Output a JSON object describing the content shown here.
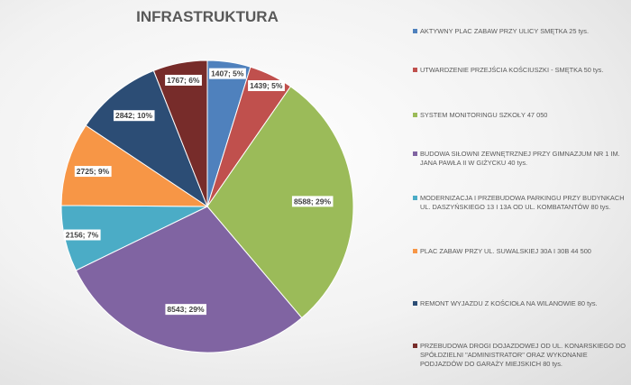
{
  "chart_data": {
    "type": "pie",
    "title": "INFRASTRUKTURA",
    "legend_position": "right",
    "series": [
      {
        "name": "AKTYWNY PLAC ZABAW PRZY ULICY SMĘTKA 25 tys.",
        "value": 1407,
        "percent": "5%",
        "label": "1407; 5%",
        "color": "#4f81bd"
      },
      {
        "name": "UTWARDZENIE PRZEJŚCIA KOŚCIUSZKI - SMĘTKA 50 tys.",
        "value": 1439,
        "percent": "5%",
        "label": "1439; 5%",
        "color": "#c0504d"
      },
      {
        "name": "SYSTEM MONITORINGU SZKOŁY 47 050",
        "value": 8588,
        "percent": "29%",
        "label": "8588; 29%",
        "color": "#9bbb59"
      },
      {
        "name": "BUDOWA SIŁOWNI ZEWNĘTRZNEJ PRZY GIMNAZJUM NR 1 IM. JANA PAWŁA II W GIŻYCKU 40 tys.",
        "value": 8543,
        "percent": "29%",
        "label": "8543; 29%",
        "color": "#8064a2"
      },
      {
        "name": "MODERNIZACJA I PRZEBUDOWA PARKINGU PRZY BUDYNKACH UL. DASZYŃSKIEGO 13 I 13A OD UL. KOMBATANTÓW 80 tys.",
        "value": 2156,
        "percent": "7%",
        "label": "2156; 7%",
        "color": "#4bacc6"
      },
      {
        "name": "PLAC ZABAW PRZY UL. SUWALSKIEJ 30A I 30B 44 500",
        "value": 2725,
        "percent": "9%",
        "label": "2725; 9%",
        "color": "#f79646"
      },
      {
        "name": "REMONT WYJAZDU Z KOŚCIOŁA NA WILANOWIE 80 tys.",
        "value": 2842,
        "percent": "10%",
        "label": "2842; 10%",
        "color": "#2c4d75"
      },
      {
        "name": "PRZEBUDOWA DROGI DOJAZDOWEJ OD UL. KONARSKIEGO DO SPÓŁDZIELNI \"ADMINISTRATOR\" ORAZ WYKONANIE PODJAZDÓW DO GARAŻY MIEJSKICH 80 tys.",
        "value": 1767,
        "percent": "6%",
        "label": "1767; 6%",
        "color": "#772c2a"
      }
    ]
  }
}
